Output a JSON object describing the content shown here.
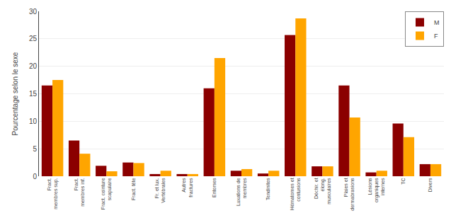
{
  "chart_data": {
    "type": "bar",
    "categories": [
      "Fract.\nmembres sup.",
      "Fract.\nmembres inf.",
      "Fract. ceinture\nscapulaire",
      "Fract. tête",
      "Fr. et lux.\nVertébrales",
      "Autres\nfractures",
      "Entorses",
      "Luxations de\nmembres",
      "Tendinites",
      "Hématomes et\ncontusions",
      "Déchir. et\nélong.\nmusculaires",
      "Plaies et\ndermabrasions",
      "Lésions\norganiques\ninternes",
      "TC",
      "Divers"
    ],
    "series": [
      {
        "name": "M",
        "color": "#8B0000",
        "values": [
          16.5,
          6.5,
          1.9,
          2.5,
          0.4,
          0.4,
          16.0,
          1.0,
          0.5,
          25.7,
          1.8,
          16.5,
          0.7,
          9.6,
          2.2
        ]
      },
      {
        "name": "F",
        "color": "#FFA500",
        "values": [
          17.5,
          4.1,
          0.9,
          2.4,
          1.0,
          0.4,
          21.5,
          1.3,
          1.0,
          28.7,
          1.8,
          10.7,
          1.0,
          7.1,
          2.2
        ]
      }
    ],
    "ylabel": "Pourcentage selon le sexe",
    "ylim": [
      0,
      30
    ],
    "yticks": [
      0,
      5,
      10,
      15,
      20,
      25,
      30
    ],
    "grid": true,
    "legend": "upper right"
  }
}
